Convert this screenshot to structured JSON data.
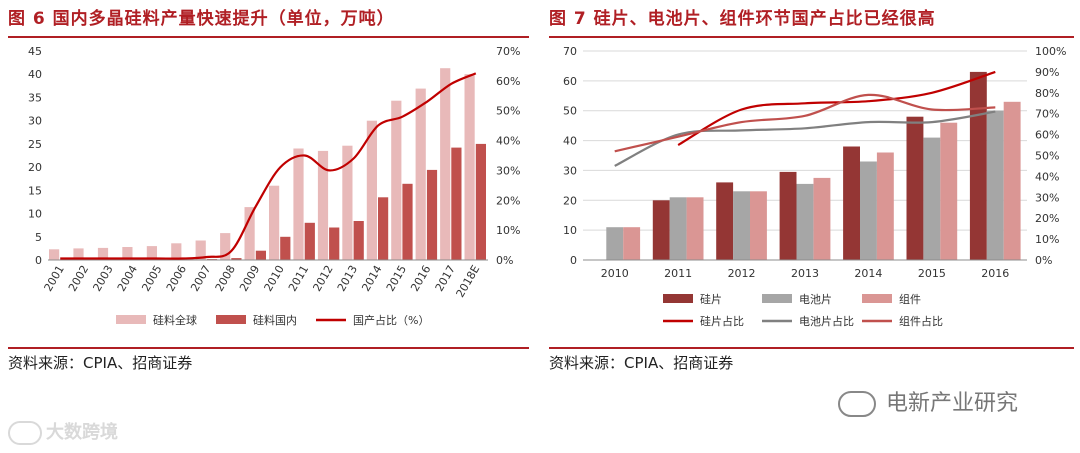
{
  "chart_data": [
    {
      "type": "bar",
      "title": "图 6  国内多晶硅料产量快速提升（单位，万吨）",
      "categories": [
        "2001",
        "2002",
        "2003",
        "2004",
        "2005",
        "2006",
        "2007",
        "2008",
        "2009",
        "2010",
        "2011",
        "2012",
        "2013",
        "2014",
        "2015",
        "2016",
        "2017",
        "2018E"
      ],
      "series": [
        {
          "name": "硅料全球",
          "kind": "bar",
          "axis": "left",
          "color": "#e8b9b9",
          "values": [
            2.3,
            2.5,
            2.6,
            2.8,
            3.0,
            3.6,
            4.2,
            5.8,
            11.4,
            16.0,
            24.0,
            23.5,
            24.6,
            30.0,
            34.3,
            36.9,
            41.3,
            40.0
          ]
        },
        {
          "name": "硅料国内",
          "kind": "bar",
          "axis": "left",
          "color": "#c0504d",
          "values": [
            0.1,
            0.1,
            0.1,
            0.1,
            0.1,
            0.1,
            0.2,
            0.4,
            2.0,
            5.0,
            8.0,
            7.0,
            8.4,
            13.5,
            16.4,
            19.4,
            24.2,
            25.0
          ]
        },
        {
          "name": "国产占比（%）",
          "kind": "line",
          "axis": "right",
          "color": "#c00000",
          "values": [
            0.5,
            0.5,
            0.5,
            0.5,
            0.5,
            0.5,
            1.0,
            3.0,
            18.0,
            31.0,
            35.0,
            30.0,
            34.0,
            45.0,
            48.0,
            53.0,
            59.0,
            62.5
          ]
        }
      ],
      "ylim": [
        0,
        45
      ],
      "yticks": [
        0,
        5,
        10,
        15,
        20,
        25,
        30,
        35,
        40,
        45
      ],
      "y2lim": [
        0,
        70
      ],
      "y2ticks": [
        "0%",
        "10%",
        "20%",
        "30%",
        "40%",
        "50%",
        "60%",
        "70%"
      ],
      "legend_position": "bottom"
    },
    {
      "type": "bar",
      "title": "图 7  硅片、电池片、组件环节国产占比已经很高",
      "categories": [
        "2010",
        "2011",
        "2012",
        "2013",
        "2014",
        "2015",
        "2016"
      ],
      "series": [
        {
          "name": "硅片",
          "kind": "bar",
          "axis": "left",
          "color": "#943634",
          "values": [
            null,
            20,
            26,
            29.5,
            38,
            48,
            63
          ]
        },
        {
          "name": "电池片",
          "kind": "bar",
          "axis": "left",
          "color": "#a6a6a6",
          "values": [
            11,
            21,
            23,
            25.5,
            33,
            41,
            50
          ]
        },
        {
          "name": "组件",
          "kind": "bar",
          "axis": "left",
          "color": "#da9694",
          "values": [
            11,
            21,
            23,
            27.5,
            36,
            46,
            53
          ]
        },
        {
          "name": "硅片占比",
          "kind": "line",
          "axis": "right",
          "color": "#c00000",
          "values": [
            null,
            55,
            72,
            75,
            76,
            80,
            90
          ]
        },
        {
          "name": "电池片占比",
          "kind": "line",
          "axis": "right",
          "color": "#808080",
          "values": [
            45,
            60,
            62,
            63,
            66,
            66,
            71
          ]
        },
        {
          "name": "组件占比",
          "kind": "line",
          "axis": "right",
          "color": "#c0504d",
          "values": [
            52,
            59,
            66,
            69,
            79,
            72,
            73
          ]
        }
      ],
      "ylim": [
        0,
        70
      ],
      "yticks": [
        0,
        10,
        20,
        30,
        40,
        50,
        60,
        70
      ],
      "y2lim": [
        0,
        100
      ],
      "y2ticks": [
        "0%",
        "10%",
        "20%",
        "30%",
        "40%",
        "50%",
        "60%",
        "70%",
        "80%",
        "90%",
        "100%"
      ],
      "legend_position": "bottom"
    }
  ],
  "sources": {
    "left": "资料来源：CPIA、招商证券",
    "right": "资料来源：CPIA、招商证券"
  },
  "watermarks": {
    "left": "大数跨境",
    "right": "电新产业研究"
  }
}
